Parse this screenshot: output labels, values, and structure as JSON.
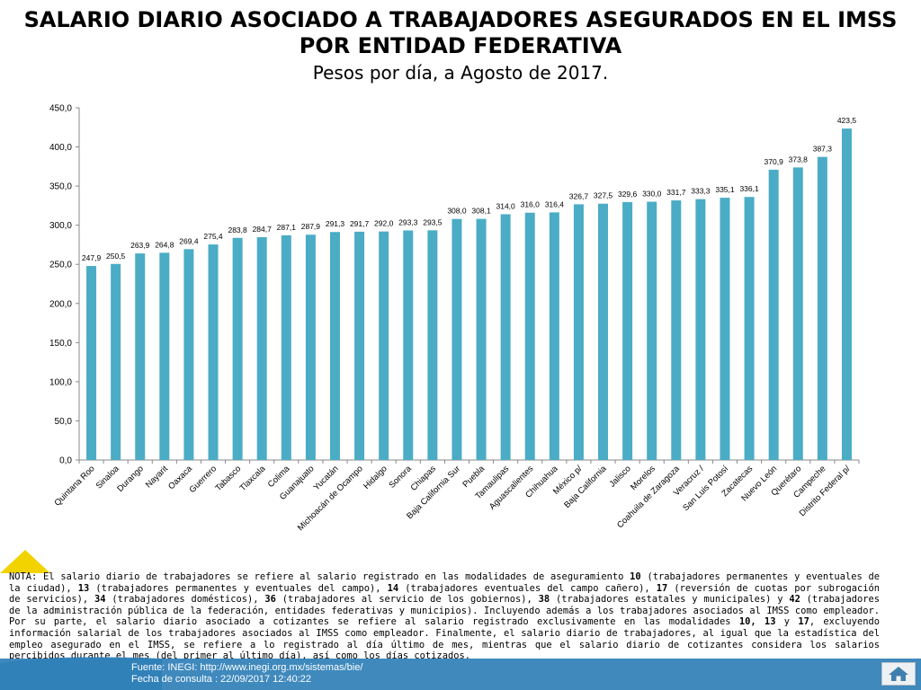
{
  "title": "SALARIO DIARIO ASOCIADO A TRABAJADORES ASEGURADOS EN EL IMSS POR ENTIDAD FEDERATIVA",
  "subtitle": "Pesos por día, a Agosto de 2017.",
  "chart_data": {
    "type": "bar",
    "categories": [
      "Quintana Roo",
      "Sinaloa",
      "Durango",
      "Nayarit",
      "Oaxaca",
      "Guerrero",
      "Tabasco",
      "Tlaxcala",
      "Colima",
      "Guanajuato",
      "Yucatán",
      "Michoacán de Ocampo",
      "Hidalgo",
      "Sonora",
      "Chiapas",
      "Baja California Sur",
      "Puebla",
      "Tamaulipas",
      "Aguascalientes",
      "Chihuahua",
      "México p/",
      "Baja California",
      "Jalisco",
      "Morelos",
      "Coahuila de Zaragoza",
      "Veracruz /",
      "San Luis Potosí",
      "Zacatecas",
      "Nuevo León",
      "Querétaro",
      "Campeche",
      "Distrito Federal p/"
    ],
    "values": [
      247.9,
      250.5,
      263.9,
      264.8,
      269.4,
      275.4,
      283.8,
      284.7,
      287.1,
      287.9,
      291.3,
      291.7,
      292.0,
      293.3,
      293.5,
      308.0,
      308.1,
      314.0,
      316.0,
      316.4,
      326.7,
      327.5,
      329.6,
      330.0,
      331.7,
      333.3,
      335.1,
      336.1,
      370.9,
      373.8,
      387.3,
      423.5
    ],
    "value_labels": [
      "247,9",
      "250,5",
      "263,9",
      "264,8",
      "269,4",
      "275,4",
      "283,8",
      "284,7",
      "287,1",
      "287,9",
      "291,3",
      "291,7",
      "292,0",
      "293,3",
      "293,5",
      "308,0",
      "308,1",
      "314,0",
      "316,0",
      "316,4",
      "326,7",
      "327,5",
      "329,6",
      "330,0",
      "331,7",
      "333,3",
      "335,1",
      "336,1",
      "370,9",
      "373,8",
      "387,3",
      "423,5"
    ],
    "yticks": [
      "0,0",
      "50,0",
      "100,0",
      "150,0",
      "200,0",
      "250,0",
      "300,0",
      "350,0",
      "400,0",
      "450,0"
    ],
    "ylim": [
      0,
      450
    ],
    "ystep": 50,
    "grid": false,
    "bar_color": "#4bacc6",
    "xlabel": "",
    "ylabel": ""
  },
  "note": {
    "p1": "NOTA: El salario diario de trabajadores se refiere al salario registrado en las modalidades de aseguramiento ",
    "n1": "10",
    "p2": " (trabajadores permanentes y eventuales de la ciudad), ",
    "n2": "13",
    "p3": " (trabajadores permanentes y eventuales del campo), ",
    "n3": "14",
    "p4": " (trabajadores eventuales del campo cañero), ",
    "n4": "17",
    "p5": " (reversión de cuotas por subrogación de servicios), ",
    "n5": "34",
    "p6": " (trabajadores domésticos), ",
    "n6": "36",
    "p7": " (trabajadores al servicio de los gobiernos), ",
    "n7": "38",
    "p8": " (trabajadores estatales y municipales) y ",
    "n8": "42",
    "p9": " (trabajadores de la administración pública de la federación, entidades federativas y municipios). Incluyendo además a los trabajadores asociados al IMSS como empleador. Por su parte, el salario diario asociado a cotizantes se refiere al salario registrado exclusivamente en las modalidades ",
    "n9": "10, 13",
    "p10": " y ",
    "n10": "17",
    "p11": ", excluyendo información salarial de los trabajadores asociados al IMSS como empleador. Finalmente, el salario diario de trabajadores, al igual que la estadística del empleo asegurado en el IMSS, se refiere a lo registrado al día último de mes, mientras que el salario diario de cotizantes considera los salarios percibidos durante el mes (del primer al último día), así como los días cotizados."
  },
  "footer": {
    "source": "Fuente: INEGI: http://www.inegi.org.mx/sistemas/bie/",
    "date": "Fecha de consulta : 22/09/2017 12:40:22"
  },
  "colors": {
    "footer_bar": "#3080b8",
    "accent_triangle": "#f2d300"
  },
  "icons": {
    "home": "home-icon"
  }
}
